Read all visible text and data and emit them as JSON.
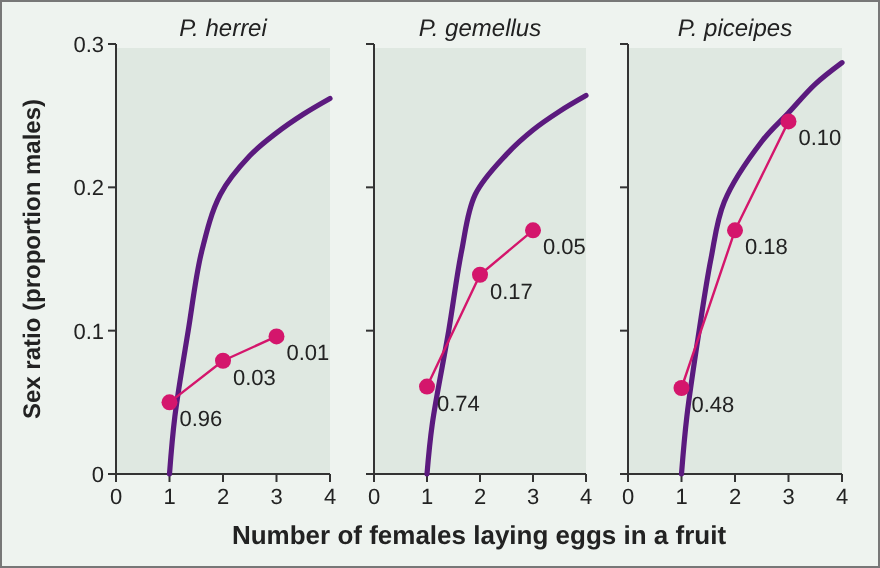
{
  "chart_data": [
    {
      "type": "line",
      "title": "P. herrei",
      "ylabel": "Sex ratio (proportion males)",
      "xlim": [
        0,
        4
      ],
      "xticks": [
        0,
        1,
        2,
        3,
        4
      ],
      "ylim": [
        0,
        0.3
      ],
      "yticks": [
        0,
        0.1,
        0.2,
        0.3
      ],
      "grid": false,
      "annotations": [
        {
          "text": "0.96",
          "x": 1,
          "y": 0.05
        },
        {
          "text": "0.03",
          "x": 2,
          "y": 0.079
        },
        {
          "text": "0.01",
          "x": 3,
          "y": 0.096
        }
      ],
      "series": [
        {
          "color": "#5b1a7e",
          "marker": "none",
          "x": [
            1,
            1.1,
            1.35,
            1.6,
            1.95,
            2.5,
            3,
            3.5,
            4
          ],
          "values": [
            0,
            0.04,
            0.1,
            0.155,
            0.195,
            0.222,
            0.238,
            0.251,
            0.262
          ]
        },
        {
          "color": "#d4166c",
          "marker": "circle",
          "x": [
            1,
            2,
            3
          ],
          "values": [
            0.05,
            0.079,
            0.096
          ]
        }
      ]
    },
    {
      "type": "line",
      "title": "P. gemellus",
      "xlabel": "Number of females laying eggs in a fruit",
      "xlim": [
        0,
        4
      ],
      "xticks": [
        0,
        1,
        2,
        3,
        4
      ],
      "ylim": [
        0,
        0.3
      ],
      "yticks": [
        0,
        0.1,
        0.2,
        0.3
      ],
      "tick_labels": "x",
      "grid": false,
      "annotations": [
        {
          "text": "0.74",
          "x": 1,
          "y": 0.061
        },
        {
          "text": "0.17",
          "x": 2,
          "y": 0.139
        },
        {
          "text": "0.05",
          "x": 3,
          "y": 0.17
        }
      ],
      "series": [
        {
          "color": "#5b1a7e",
          "marker": "none",
          "x": [
            1,
            1.1,
            1.41,
            1.65,
            1.91,
            2.5,
            3,
            3.5,
            4
          ],
          "values": [
            0,
            0.035,
            0.1,
            0.155,
            0.195,
            0.223,
            0.24,
            0.253,
            0.264
          ]
        },
        {
          "color": "#d4166c",
          "marker": "circle",
          "x": [
            1,
            2,
            3
          ],
          "values": [
            0.061,
            0.139,
            0.17
          ]
        }
      ]
    },
    {
      "type": "line",
      "title": "P. piceipes",
      "xlim": [
        0,
        4
      ],
      "xticks": [
        0,
        1,
        2,
        3,
        4
      ],
      "ylim": [
        0,
        0.3
      ],
      "yticks": [
        0,
        0.1,
        0.2,
        0.3
      ],
      "tick_labels": "x",
      "grid": false,
      "annotations": [
        {
          "text": "0.48",
          "x": 1,
          "y": 0.06
        },
        {
          "text": "0.18",
          "x": 2,
          "y": 0.17
        },
        {
          "text": "0.10",
          "x": 3,
          "y": 0.246
        }
      ],
      "series": [
        {
          "color": "#5b1a7e",
          "marker": "none",
          "x": [
            1,
            1.1,
            1.33,
            1.55,
            1.8,
            2.5,
            3,
            3.5,
            4
          ],
          "values": [
            0,
            0.04,
            0.1,
            0.15,
            0.19,
            0.232,
            0.252,
            0.272,
            0.287
          ]
        },
        {
          "color": "#d4166c",
          "marker": "circle",
          "x": [
            1,
            2,
            3
          ],
          "values": [
            0.06,
            0.17,
            0.246
          ]
        }
      ]
    }
  ]
}
